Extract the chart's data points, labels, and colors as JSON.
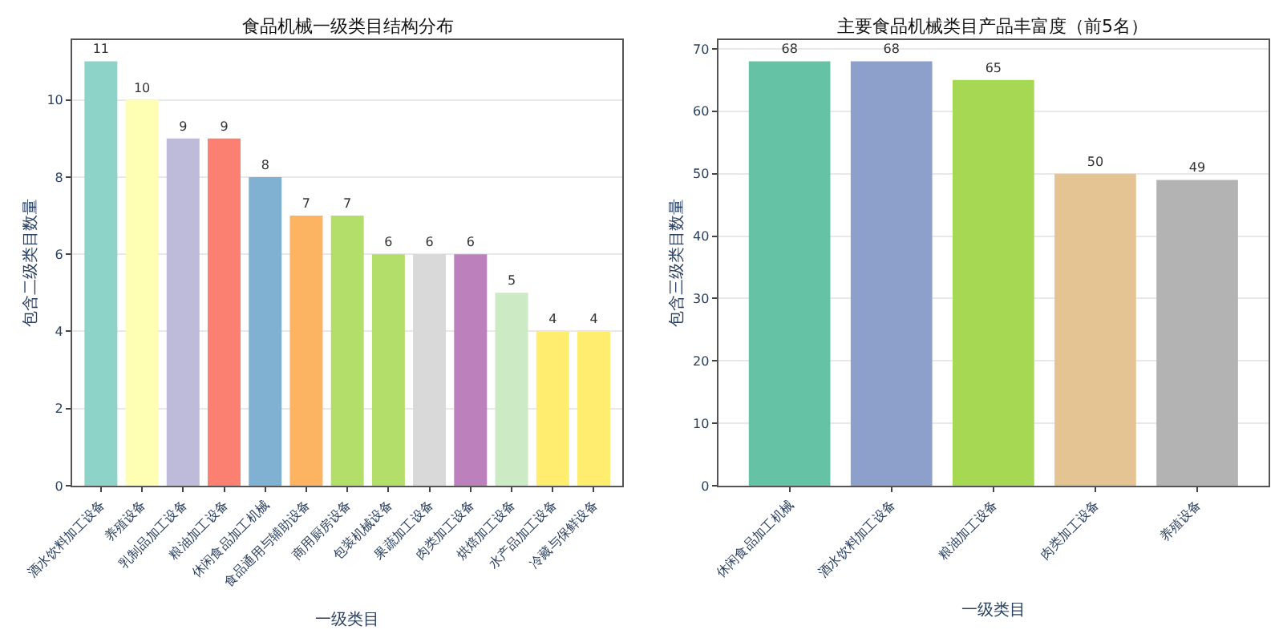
{
  "chart_data": [
    {
      "type": "bar",
      "title": "食品机械一级类目结构分布",
      "xlabel": "一级类目",
      "ylabel": "包含二级类目数量",
      "categories": [
        "酒水饮料加工设备",
        "养殖设备",
        "乳制品加工设备",
        "粮油加工设备",
        "休闲食品加工机械",
        "食品通用与辅助设备",
        "商用厨房设备",
        "包装机械设备",
        "果蔬加工设备",
        "肉类加工设备",
        "烘焙加工设备",
        "水产品加工设备",
        "冷藏与保鲜设备"
      ],
      "values": [
        11,
        10,
        9,
        9,
        8,
        7,
        7,
        6,
        6,
        6,
        5,
        4,
        4
      ],
      "colors": [
        "#8dd3c7",
        "#ffffb3",
        "#bebada",
        "#fb8072",
        "#80b1d3",
        "#fdb462",
        "#b3de69",
        "#b3de69",
        "#d9d9d9",
        "#bc80bd",
        "#ccebc5",
        "#ffed6f",
        "#ffed6f"
      ],
      "ylim": [
        0,
        11.55
      ],
      "yticks": [
        0,
        2,
        4,
        6,
        8,
        10
      ],
      "grid": "y",
      "data_labels": true
    },
    {
      "type": "bar",
      "title": "主要食品机械类目产品丰富度（前5名）",
      "xlabel": "一级类目",
      "ylabel": "包含三级类目数量",
      "categories": [
        "休闲食品加工机械",
        "酒水饮料加工设备",
        "粮油加工设备",
        "肉类加工设备",
        "养殖设备"
      ],
      "values": [
        68,
        68,
        65,
        50,
        49
      ],
      "colors": [
        "#66c2a5",
        "#8da0cb",
        "#a6d854",
        "#e5c494",
        "#b3b3b3"
      ],
      "ylim": [
        0,
        71.4
      ],
      "yticks": [
        0,
        10,
        20,
        30,
        40,
        50,
        60,
        70
      ],
      "grid": "y",
      "data_labels": true
    }
  ]
}
